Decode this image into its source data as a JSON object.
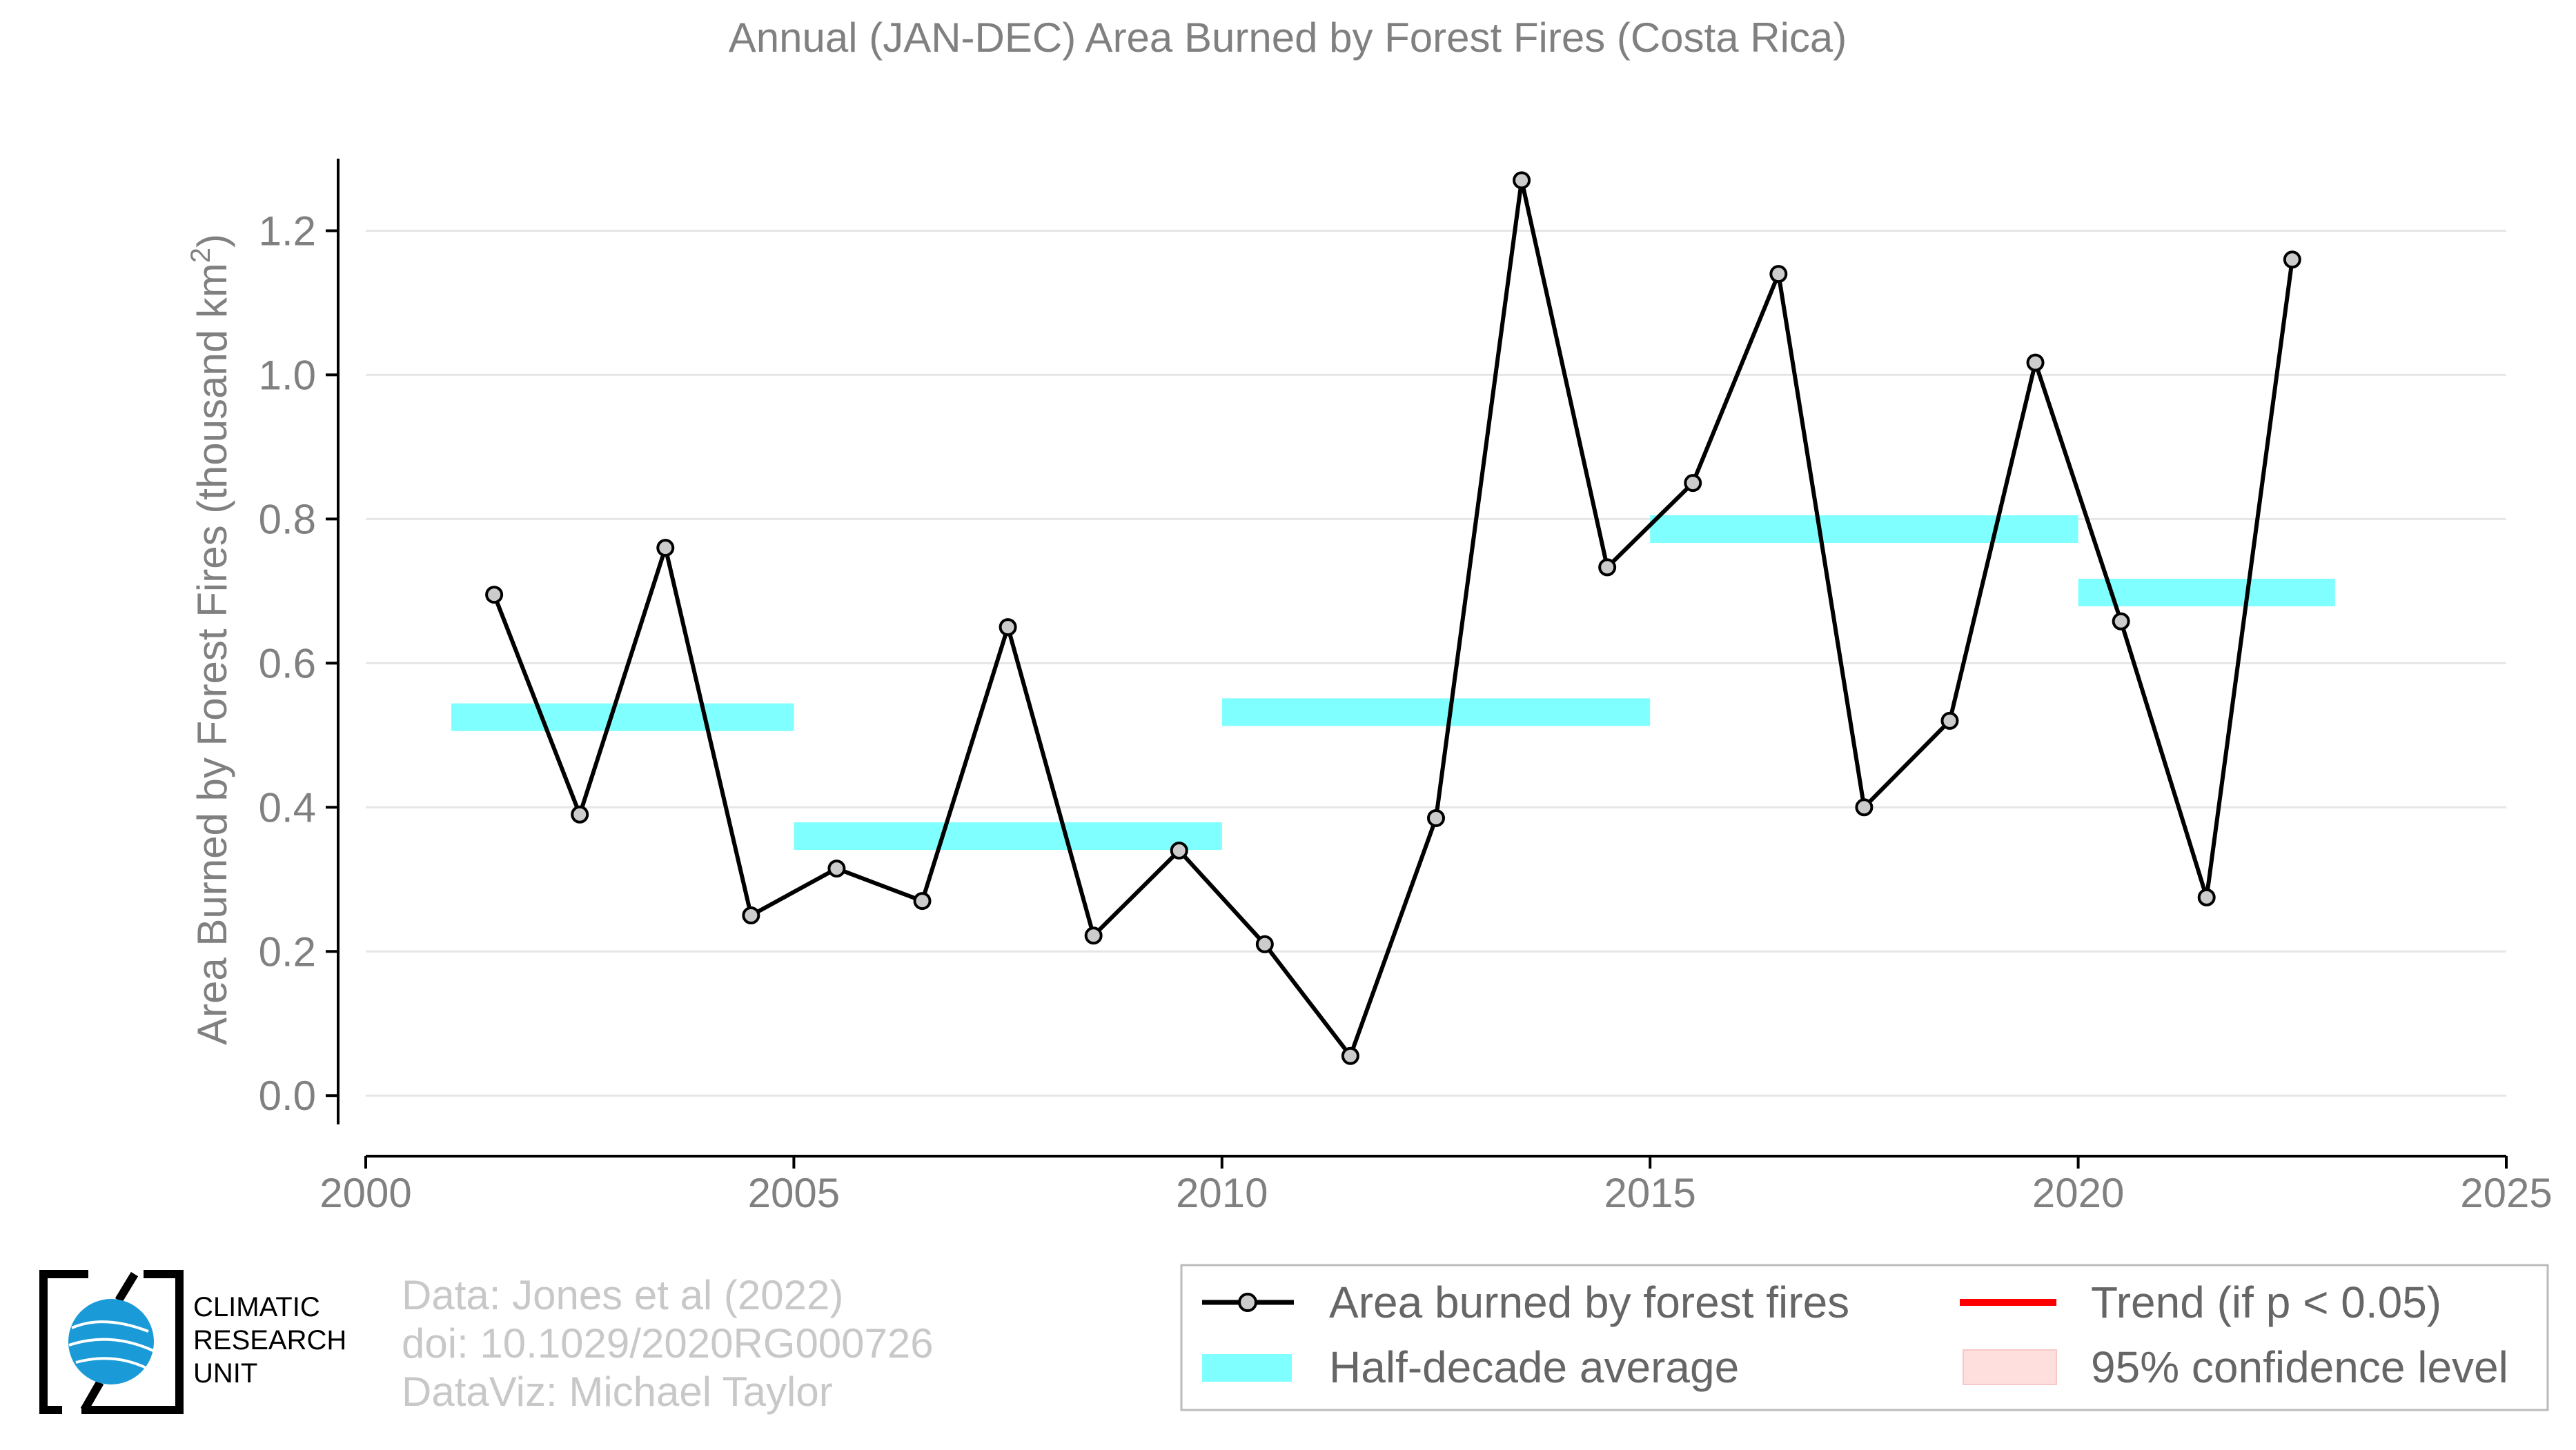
{
  "chart_data": {
    "type": "line",
    "title": "Annual (JAN-DEC) Area Burned by Forest Fires (Costa Rica)",
    "ylabel": "Area Burned by Forest Fires (thousand km",
    "ylabel_sup": "2",
    "ylabel_close": ")",
    "xlabel": "",
    "xlim": [
      2000,
      2025
    ],
    "ylim": [
      -0.04,
      1.3
    ],
    "x_ticks": [
      2000,
      2005,
      2010,
      2015,
      2020,
      2025
    ],
    "x_tick_labels": [
      "2000",
      "2005",
      "2010",
      "2015",
      "2020",
      "2025"
    ],
    "y_ticks": [
      0.0,
      0.2,
      0.4,
      0.6,
      0.8,
      1.0,
      1.2
    ],
    "y_tick_labels": [
      "0.0",
      "0.2",
      "0.4",
      "0.6",
      "0.8",
      "1.0",
      "1.2"
    ],
    "grid": "horizontal",
    "series": [
      {
        "name": "Area burned by forest fires",
        "color": "#000000",
        "marker_fill": "#cccccc",
        "x": [
          2001.5,
          2002.5,
          2003.5,
          2004.5,
          2005.5,
          2006.5,
          2007.5,
          2008.5,
          2009.5,
          2010.5,
          2011.5,
          2012.5,
          2013.5,
          2014.5,
          2015.5,
          2016.5,
          2017.5,
          2018.5,
          2019.5,
          2020.5,
          2021.5,
          2022.5
        ],
        "values": [
          0.695,
          0.39,
          0.76,
          0.25,
          0.315,
          0.27,
          0.65,
          0.222,
          0.34,
          0.21,
          0.055,
          0.385,
          1.27,
          0.733,
          0.85,
          1.14,
          0.4,
          0.52,
          1.017,
          0.658,
          0.275,
          1.16
        ]
      }
    ],
    "half_decade_average": {
      "name": "Half-decade average",
      "color": "#7fffff",
      "segments": [
        {
          "x_start": 2001,
          "x_end": 2005,
          "value": 0.525
        },
        {
          "x_start": 2005,
          "x_end": 2010,
          "value": 0.36
        },
        {
          "x_start": 2010,
          "x_end": 2015,
          "value": 0.532
        },
        {
          "x_start": 2015,
          "x_end": 2020,
          "value": 0.786
        },
        {
          "x_start": 2020,
          "x_end": 2023,
          "value": 0.698
        }
      ]
    },
    "legend": {
      "placement": "bottom-right",
      "entries": [
        {
          "label": "Area burned by forest fires",
          "kind": "line-marker",
          "color": "#000000"
        },
        {
          "label": "Trend (if p < 0.05)",
          "kind": "line",
          "color": "#ff0000"
        },
        {
          "label": "Half-decade average",
          "kind": "band",
          "color": "#7fffff"
        },
        {
          "label": "95% confidence level",
          "kind": "band",
          "color": "#ffdede"
        }
      ]
    }
  },
  "credits": {
    "line1": "Data: Jones et al (2022)",
    "line2": "doi: 10.1029/2020RG000726",
    "line3": "DataViz: Michael Taylor"
  },
  "logo": {
    "line1": "CLIMATIC",
    "line2": "RESEARCH",
    "line3": "UNIT",
    "globe_color": "#1a9bd7"
  }
}
